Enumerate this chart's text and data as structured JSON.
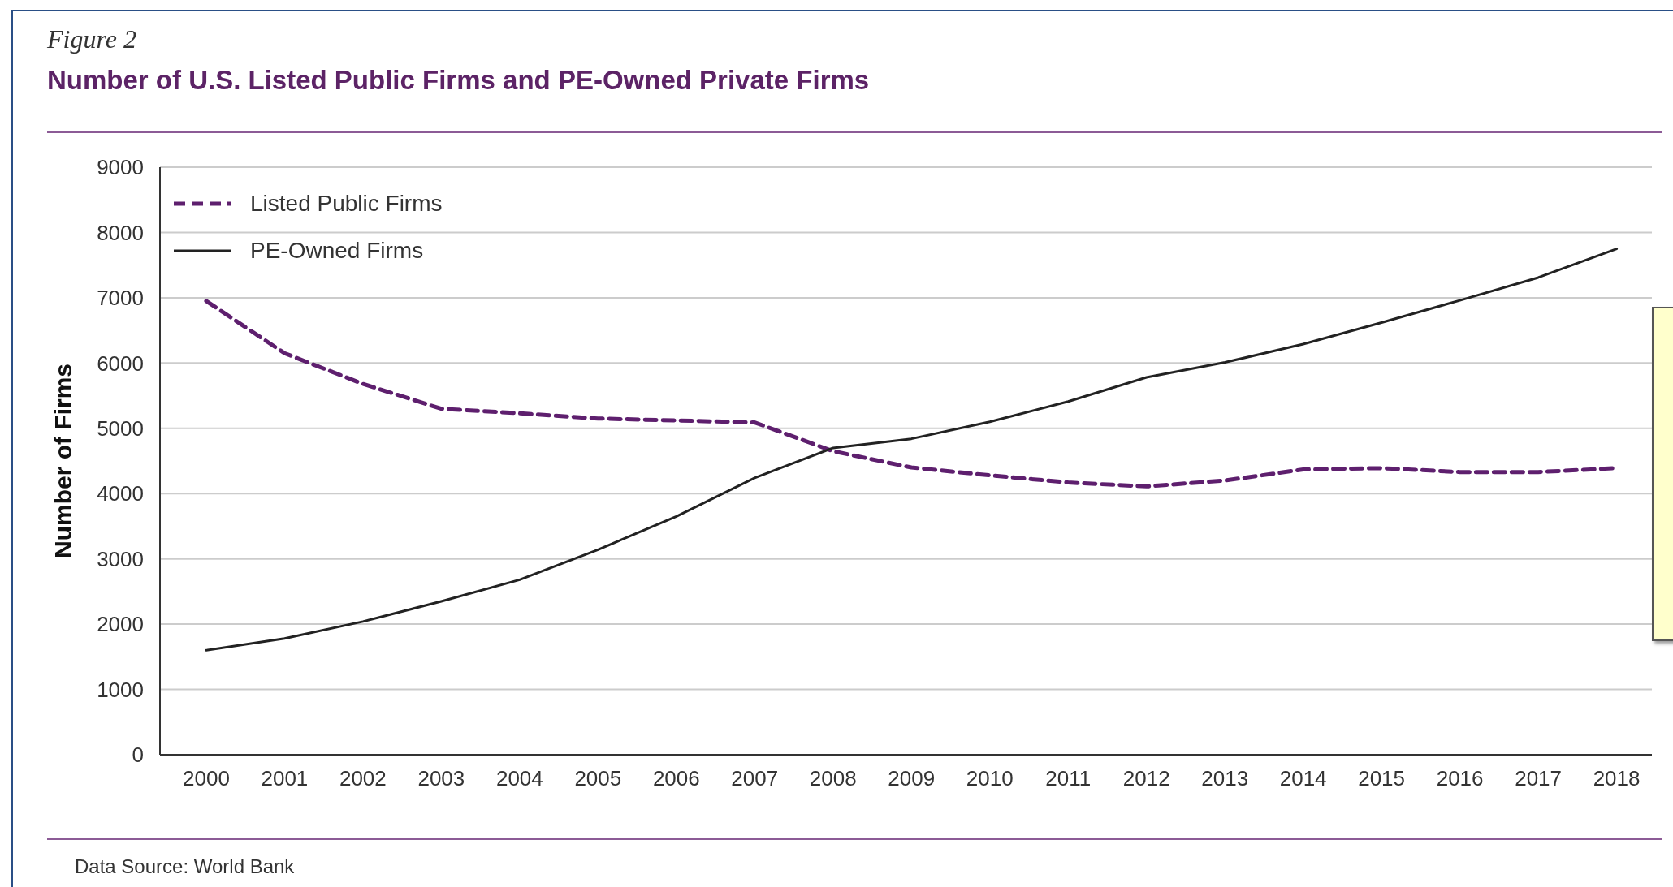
{
  "chart_data": {
    "type": "line",
    "title": "Number of U.S. Listed Public Firms and PE-Owned Private Firms",
    "ylabel": "Number of Firms",
    "annotations": [
      "Figure 2",
      "Data Source: World Bank"
    ],
    "categories": [
      "2000",
      "2001",
      "2002",
      "2003",
      "2004",
      "2005",
      "2006",
      "2007",
      "2008",
      "2009",
      "2010",
      "2011",
      "2012",
      "2013",
      "2014",
      "2015",
      "2016",
      "2017",
      "2018"
    ],
    "series": [
      {
        "name": "Listed Public Firms",
        "color": "#5e1f6e",
        "line_style": "dashed",
        "values": [
          6950,
          6150,
          5680,
          5300,
          5230,
          5150,
          5120,
          5090,
          4650,
          4400,
          4280,
          4170,
          4110,
          4200,
          4370,
          4390,
          4330,
          4330,
          4390
        ]
      },
      {
        "name": "PE-Owned Firms",
        "color": "#222222",
        "line_style": "solid",
        "values": [
          1600,
          1780,
          2040,
          2350,
          2680,
          3140,
          3650,
          4240,
          4700,
          4840,
          5100,
          5410,
          5780,
          6010,
          6290,
          6620,
          6960,
          7310,
          7750
        ]
      }
    ],
    "ylim": [
      0,
      9000
    ],
    "yticks": [
      0,
      1000,
      2000,
      3000,
      4000,
      5000,
      6000,
      7000,
      8000,
      9000
    ],
    "grid": "y",
    "legend": "top left",
    "marker": "none"
  }
}
